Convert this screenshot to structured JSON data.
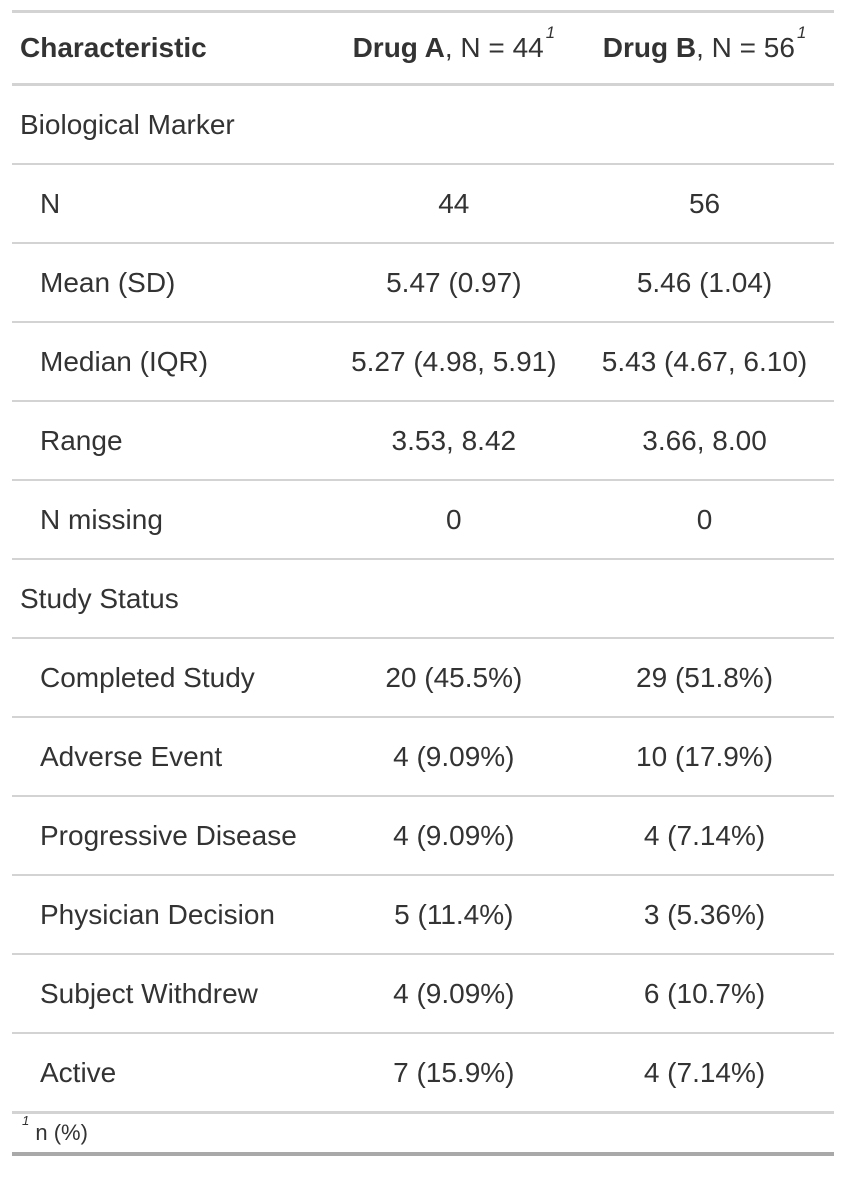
{
  "colors": {
    "text": "#333333",
    "border_light": "#D3D3D3",
    "border_dark": "#A9A9A9",
    "background": "#FFFFFF"
  },
  "table": {
    "header": {
      "characteristic": "Characteristic",
      "drug_a": {
        "name": "Drug A",
        "suffix": ", N = 44",
        "footnote_mark": "1"
      },
      "drug_b": {
        "name": "Drug B",
        "suffix": ", N = 56",
        "footnote_mark": "1"
      }
    },
    "rows": [
      {
        "label": "Biological Marker",
        "drug_a": "",
        "drug_b": ""
      },
      {
        "label": "N",
        "drug_a": "44",
        "drug_b": "56"
      },
      {
        "label": "Mean (SD)",
        "drug_a": "5.47 (0.97)",
        "drug_b": "5.46 (1.04)"
      },
      {
        "label": "Median (IQR)",
        "drug_a": "5.27 (4.98, 5.91)",
        "drug_b": "5.43 (4.67, 6.10)"
      },
      {
        "label": "Range",
        "drug_a": "3.53, 8.42",
        "drug_b": "3.66, 8.00"
      },
      {
        "label": "N missing",
        "drug_a": "0",
        "drug_b": "0"
      },
      {
        "label": "Study Status",
        "drug_a": "",
        "drug_b": ""
      },
      {
        "label": "Completed Study",
        "drug_a": "20 (45.5%)",
        "drug_b": "29 (51.8%)"
      },
      {
        "label": "Adverse Event",
        "drug_a": "4 (9.09%)",
        "drug_b": "10 (17.9%)"
      },
      {
        "label": "Progressive Disease",
        "drug_a": "4 (9.09%)",
        "drug_b": "4 (7.14%)"
      },
      {
        "label": "Physician Decision",
        "drug_a": "5 (11.4%)",
        "drug_b": "3 (5.36%)"
      },
      {
        "label": "Subject Withdrew",
        "drug_a": "4 (9.09%)",
        "drug_b": "6 (10.7%)"
      },
      {
        "label": "Active",
        "drug_a": "7 (15.9%)",
        "drug_b": "4 (7.14%)"
      }
    ],
    "footnote": {
      "mark": "1",
      "text": "n (%)"
    }
  },
  "chart_data": {
    "type": "table",
    "title": "Summary table comparing Drug A and Drug B",
    "columns": [
      "Characteristic",
      "Drug A, N = 44",
      "Drug B, N = 56"
    ],
    "rows": [
      [
        "Biological Marker",
        "",
        ""
      ],
      [
        "N",
        "44",
        "56"
      ],
      [
        "Mean (SD)",
        "5.47 (0.97)",
        "5.46 (1.04)"
      ],
      [
        "Median (IQR)",
        "5.27 (4.98, 5.91)",
        "5.43 (4.67, 6.10)"
      ],
      [
        "Range",
        "3.53, 8.42",
        "3.66, 8.00"
      ],
      [
        "N missing",
        "0",
        "0"
      ],
      [
        "Study Status",
        "",
        ""
      ],
      [
        "Completed Study",
        "20 (45.5%)",
        "29 (51.8%)"
      ],
      [
        "Adverse Event",
        "4 (9.09%)",
        "10 (17.9%)"
      ],
      [
        "Progressive Disease",
        "4 (9.09%)",
        "4 (7.14%)"
      ],
      [
        "Physician Decision",
        "5 (11.4%)",
        "3 (5.36%)"
      ],
      [
        "Subject Withdrew",
        "4 (9.09%)",
        "6 (10.7%)"
      ],
      [
        "Active",
        "7 (15.9%)",
        "4 (7.14%)"
      ]
    ],
    "footnote": "1 n (%)"
  }
}
